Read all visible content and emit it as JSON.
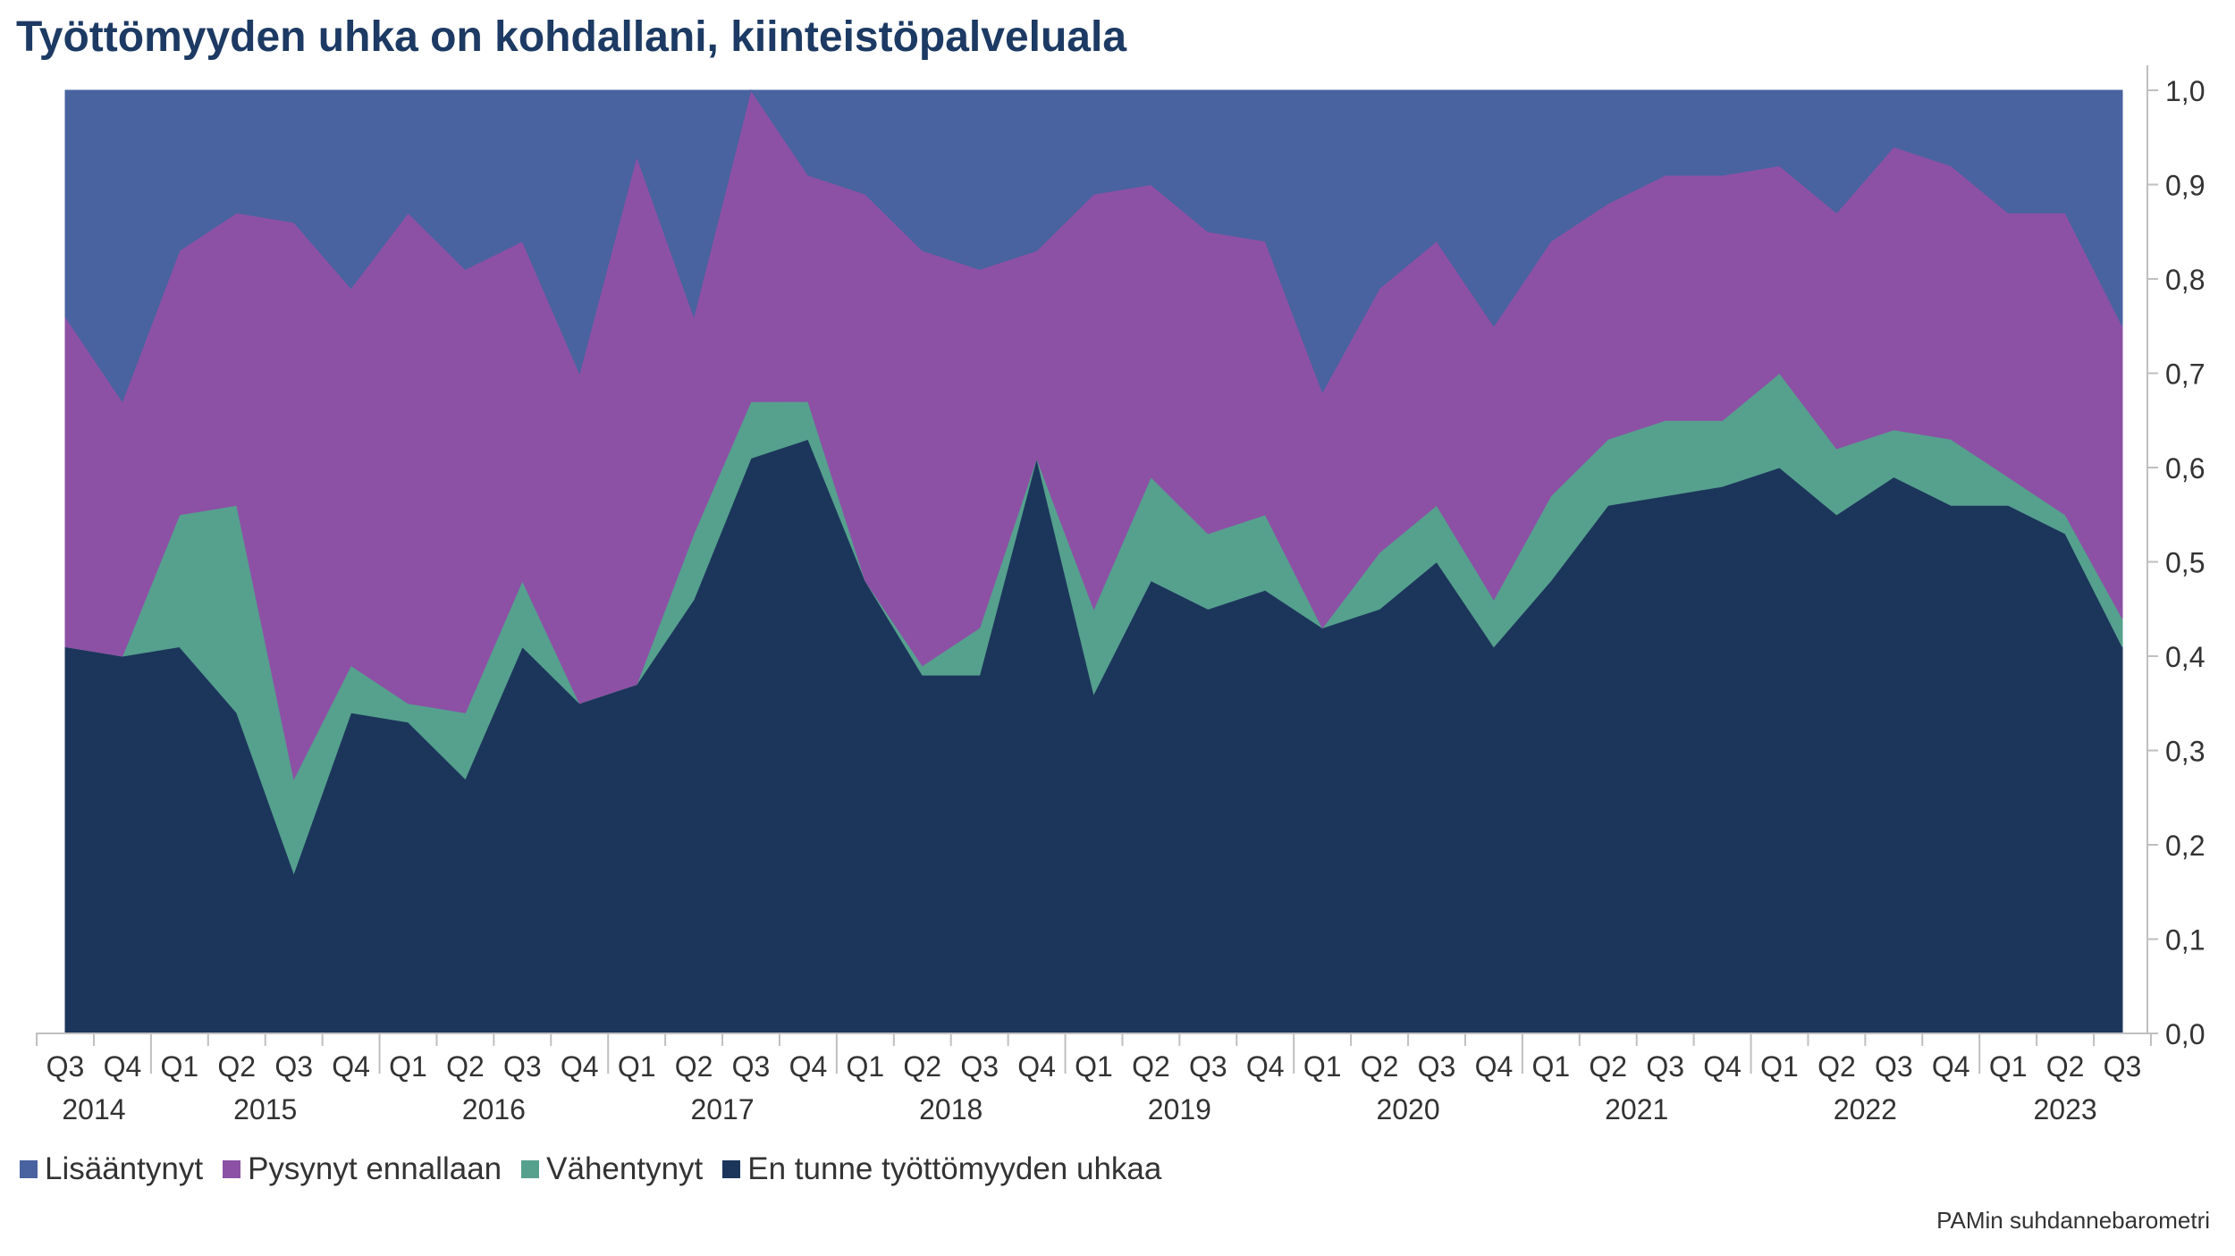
{
  "title": "Työttömyyden uhka on kohdallani, kiinteistöpalveluala",
  "source": "PAMin suhdannebarometri",
  "chart_data": {
    "type": "area",
    "stacked": true,
    "title": "Työttömyyden uhka on kohdallani, kiinteistöpalveluala",
    "xlabel": "",
    "ylabel": "",
    "ylim": [
      0,
      1
    ],
    "y_axis_position": "right",
    "y_ticks": [
      "0,0",
      "0,1",
      "0,2",
      "0,3",
      "0,4",
      "0,5",
      "0,6",
      "0,7",
      "0,8",
      "0,9",
      "1,0"
    ],
    "grid": true,
    "legend_position": "bottom-left",
    "categories": [
      "Q3",
      "Q4",
      "Q1",
      "Q2",
      "Q3",
      "Q4",
      "Q1",
      "Q2",
      "Q3",
      "Q4",
      "Q1",
      "Q2",
      "Q3",
      "Q4",
      "Q1",
      "Q2",
      "Q3",
      "Q4",
      "Q1",
      "Q2",
      "Q3",
      "Q4",
      "Q1",
      "Q2",
      "Q3",
      "Q4",
      "Q1",
      "Q2",
      "Q3",
      "Q4",
      "Q1",
      "Q2",
      "Q3",
      "Q4",
      "Q1",
      "Q2",
      "Q3"
    ],
    "year_labels": [
      {
        "label": "2014",
        "index": 0.5
      },
      {
        "label": "2015",
        "index": 3.5
      },
      {
        "label": "2016",
        "index": 7.5
      },
      {
        "label": "2017",
        "index": 11.5
      },
      {
        "label": "2018",
        "index": 15.5
      },
      {
        "label": "2019",
        "index": 19.5
      },
      {
        "label": "2020",
        "index": 23.5
      },
      {
        "label": "2021",
        "index": 27.5
      },
      {
        "label": "2022",
        "index": 31.5
      },
      {
        "label": "2023",
        "index": 35
      }
    ],
    "year_boundaries": [
      1.5,
      5.5,
      9.5,
      13.5,
      17.5,
      21.5,
      25.5,
      29.5,
      33.5
    ],
    "series": [
      {
        "name": "En tunne työttömyyden uhkaa",
        "color": "#1c365b",
        "values": [
          0.41,
          0.4,
          0.41,
          0.34,
          0.17,
          0.34,
          0.33,
          0.27,
          0.41,
          0.35,
          0.37,
          0.46,
          0.61,
          0.63,
          0.48,
          0.38,
          0.38,
          0.61,
          0.36,
          0.48,
          0.45,
          0.47,
          0.43,
          0.45,
          0.5,
          0.41,
          0.48,
          0.56,
          0.57,
          0.58,
          0.6,
          0.55,
          0.59,
          0.56,
          0.56,
          0.53,
          0.41
        ]
      },
      {
        "name": "Vähentynyt",
        "color": "#56a08e",
        "values": [
          0.0,
          0.0,
          0.14,
          0.22,
          0.1,
          0.05,
          0.02,
          0.07,
          0.07,
          0.0,
          0.0,
          0.07,
          0.06,
          0.04,
          0.0,
          0.01,
          0.05,
          0.0,
          0.09,
          0.11,
          0.08,
          0.08,
          0.0,
          0.06,
          0.06,
          0.05,
          0.09,
          0.07,
          0.08,
          0.07,
          0.1,
          0.07,
          0.05,
          0.07,
          0.03,
          0.02,
          0.03
        ]
      },
      {
        "name": "Pysynyt ennallaan",
        "color": "#8c51a5",
        "values": [
          0.35,
          0.27,
          0.28,
          0.31,
          0.59,
          0.4,
          0.52,
          0.47,
          0.36,
          0.35,
          0.56,
          0.23,
          0.33,
          0.24,
          0.41,
          0.44,
          0.38,
          0.22,
          0.44,
          0.31,
          0.32,
          0.29,
          0.25,
          0.28,
          0.28,
          0.29,
          0.27,
          0.25,
          0.26,
          0.26,
          0.22,
          0.25,
          0.3,
          0.29,
          0.28,
          0.32,
          0.31
        ]
      },
      {
        "name": "Lisääntynyt",
        "color": "#4863a0",
        "values": [
          0.24,
          0.33,
          0.17,
          0.13,
          0.14,
          0.21,
          0.13,
          0.19,
          0.16,
          0.3,
          0.07,
          0.24,
          0.0,
          0.09,
          0.11,
          0.17,
          0.19,
          0.17,
          0.11,
          0.1,
          0.15,
          0.16,
          0.32,
          0.21,
          0.16,
          0.25,
          0.16,
          0.12,
          0.09,
          0.09,
          0.08,
          0.13,
          0.06,
          0.08,
          0.13,
          0.13,
          0.25
        ]
      }
    ]
  },
  "legend": [
    {
      "label": "Lisääntynyt",
      "color": "#4863a0"
    },
    {
      "label": "Pysynyt ennallaan",
      "color": "#8c51a5"
    },
    {
      "label": "Vähentynyt",
      "color": "#56a08e"
    },
    {
      "label": "En tunne työttömyyden uhkaa",
      "color": "#1c365b"
    }
  ]
}
